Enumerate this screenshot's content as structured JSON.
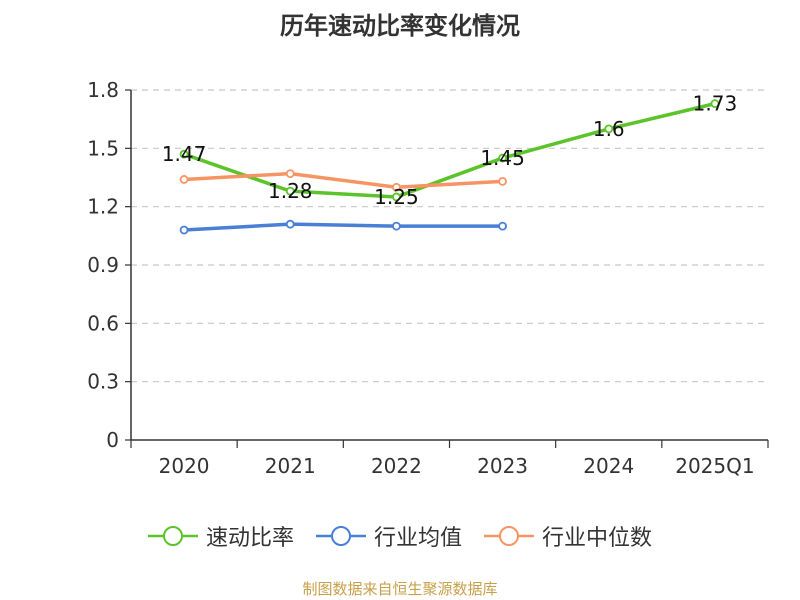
{
  "chart_data": {
    "type": "line",
    "title": "历年速动比率变化情况",
    "categories": [
      "2020",
      "2021",
      "2022",
      "2023",
      "2024",
      "2025Q1"
    ],
    "y_ticks": [
      "0",
      "0.3",
      "0.6",
      "0.9",
      "1.2",
      "1.5",
      "1.8"
    ],
    "ylim": [
      0,
      1.8
    ],
    "grid": true,
    "legend_position": "bottom",
    "series": [
      {
        "name": "速动比率",
        "color": "#5cc32b",
        "values": [
          1.47,
          1.28,
          1.25,
          1.45,
          1.6,
          1.73
        ],
        "labels": [
          "1.47",
          "1.28",
          "1.25",
          "1.45",
          "1.6",
          "1.73"
        ]
      },
      {
        "name": "行业均值",
        "color": "#4a7fd6",
        "values": [
          1.08,
          1.11,
          1.1,
          1.1,
          null,
          null
        ]
      },
      {
        "name": "行业中位数",
        "color": "#f79464",
        "values": [
          1.34,
          1.37,
          1.3,
          1.33,
          null,
          null
        ]
      }
    ]
  },
  "source": "制图数据来自恒生聚源数据库"
}
